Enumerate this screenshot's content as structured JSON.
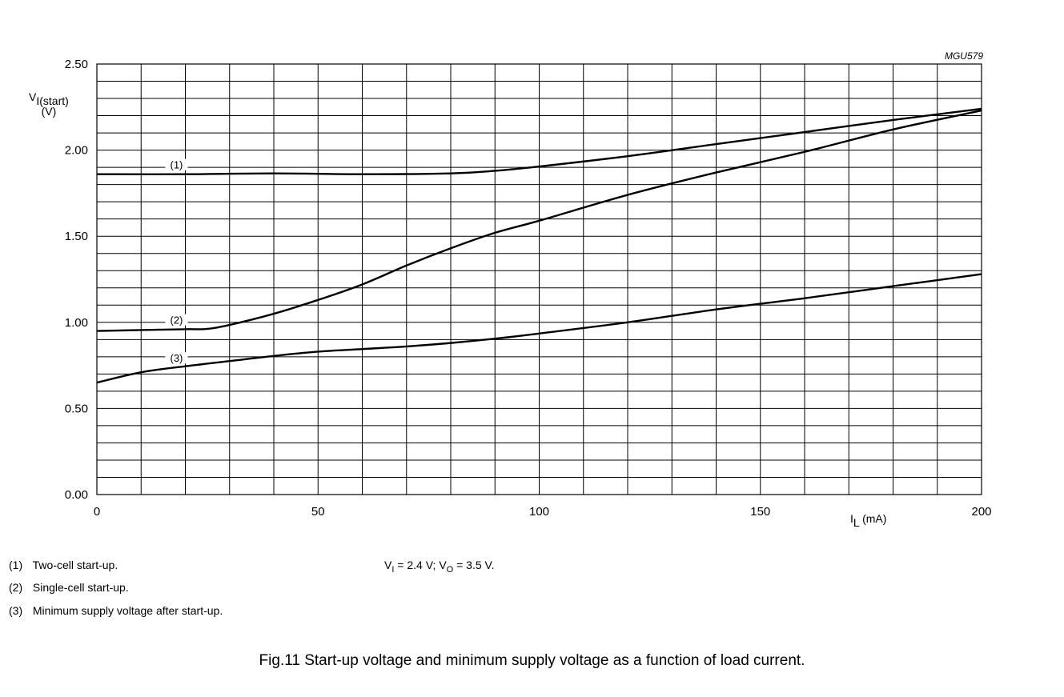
{
  "chart_data": {
    "type": "line",
    "code": "MGU579",
    "ylabel": {
      "main": "V",
      "sub": "I(start)",
      "unit": "(V)"
    },
    "xlabel": {
      "main": "I",
      "sub": "L",
      "unit": "(mA)"
    },
    "xlim": [
      0,
      200
    ],
    "ylim": [
      0,
      2.5
    ],
    "x_ticks": [
      "0",
      "50",
      "100",
      "150",
      "200"
    ],
    "y_ticks": [
      "0.00",
      "0.50",
      "1.00",
      "1.50",
      "2.00",
      "2.50"
    ],
    "grid": true,
    "series": [
      {
        "name": "(1)",
        "x": [
          0,
          20,
          40,
          60,
          80,
          90,
          100,
          120,
          140,
          160,
          180,
          200
        ],
        "y": [
          1.86,
          1.86,
          1.865,
          1.86,
          1.865,
          1.88,
          1.905,
          1.965,
          2.035,
          2.105,
          2.175,
          2.24
        ]
      },
      {
        "name": "(2)",
        "x": [
          0,
          10,
          20,
          25,
          30,
          40,
          50,
          60,
          70,
          80,
          90,
          100,
          120,
          140,
          160,
          180,
          200
        ],
        "y": [
          0.95,
          0.955,
          0.96,
          0.962,
          0.985,
          1.05,
          1.13,
          1.22,
          1.33,
          1.43,
          1.52,
          1.59,
          1.74,
          1.87,
          1.99,
          2.12,
          2.23
        ]
      },
      {
        "name": "(3)",
        "x": [
          0,
          10,
          20,
          30,
          40,
          50,
          60,
          70,
          80,
          90,
          100,
          120,
          140,
          160,
          180,
          200
        ],
        "y": [
          0.65,
          0.71,
          0.745,
          0.775,
          0.805,
          0.83,
          0.845,
          0.86,
          0.88,
          0.905,
          0.935,
          1.0,
          1.075,
          1.14,
          1.21,
          1.28
        ]
      }
    ],
    "curve_label_x": [
      18,
      18,
      18
    ]
  },
  "legend": [
    {
      "num": "(1)",
      "text": "Two-cell start-up."
    },
    {
      "num": "(2)",
      "text": "Single-cell start-up."
    },
    {
      "num": "(3)",
      "text": "Minimum supply voltage after start-up."
    }
  ],
  "conditions": {
    "v1": "V",
    "v1_sub": "I",
    "v1_rest": " = 2.4 V; ",
    "v2": "V",
    "v2_sub": "O",
    "v2_rest": " = 3.5 V."
  },
  "caption": "Fig.11  Start-up voltage and minimum supply voltage as a function of load current."
}
